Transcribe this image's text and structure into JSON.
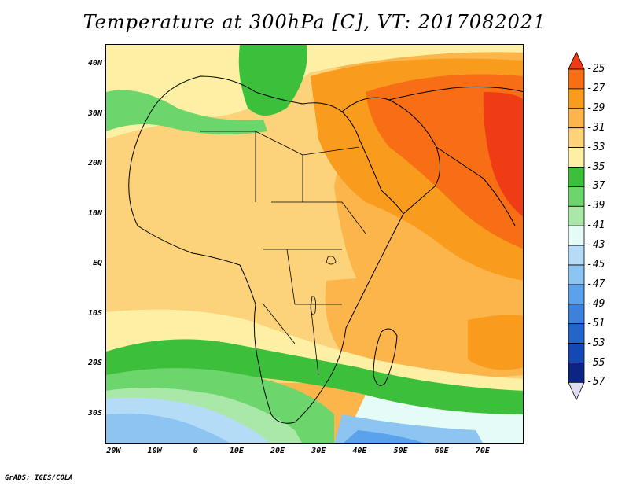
{
  "title": "Temperature at 300hPa [C], VT: 2017082021",
  "credit": "GrADS: IGES/COLA",
  "map": {
    "lat_labels": [
      "40N",
      "30N",
      "20N",
      "10N",
      "EQ",
      "10S",
      "20S",
      "30S"
    ],
    "lon_labels": [
      "20W",
      "10W",
      "0",
      "10E",
      "20E",
      "30E",
      "40E",
      "50E",
      "60E",
      "70E"
    ],
    "lat_values": [
      40,
      30,
      20,
      10,
      0,
      -10,
      -20,
      -30
    ],
    "lon_values": [
      -20,
      -10,
      0,
      10,
      20,
      30,
      40,
      50,
      60,
      70
    ],
    "lat_range": [
      -36,
      44
    ],
    "lon_range": [
      -22,
      80
    ]
  },
  "colorbar": {
    "labels": [
      "-25",
      "-27",
      "-29",
      "-31",
      "-33",
      "-35",
      "-37",
      "-39",
      "-41",
      "-43",
      "-45",
      "-47",
      "-49",
      "-51",
      "-53",
      "-55",
      "-57"
    ],
    "colors": [
      "#f03c14",
      "#f76e14",
      "#f99b1c",
      "#fbb54a",
      "#fcd37a",
      "#fdf0a4",
      "#3cc03c",
      "#6cd66c",
      "#aae8aa",
      "#e4fbf7",
      "#b4dcf6",
      "#8cc4f2",
      "#5aa2ec",
      "#3c82dc",
      "#2266cc",
      "#1448b4",
      "#0c2484",
      "#e0dcf4"
    ]
  }
}
